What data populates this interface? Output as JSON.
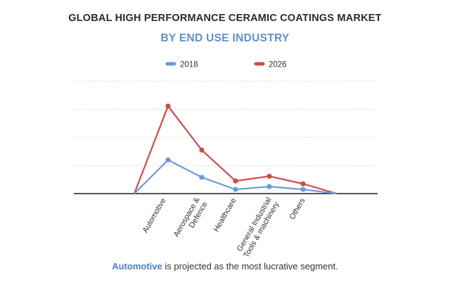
{
  "chart_data": {
    "type": "line",
    "title": "GLOBAL HIGH PERFORMANCE CERAMIC COATINGS MARKET",
    "subtitle": "BY END USE INDUSTRY",
    "categories": [
      "",
      "Automotive",
      "Aerospace & Defence",
      "Healthcare",
      "General Industrial Tools & machinery",
      "Others",
      ""
    ],
    "series": [
      {
        "name": "2018",
        "color": "#6a9bd8",
        "values": [
          0,
          1.2,
          0.58,
          0.15,
          0.25,
          0.15,
          0
        ]
      },
      {
        "name": "2026",
        "color": "#cf4a4a",
        "values": [
          0,
          3.12,
          1.55,
          0.45,
          0.62,
          0.35,
          0
        ]
      }
    ],
    "ylim": [
      0,
      4
    ],
    "gridlines": true,
    "xlabel": "",
    "ylabel": "",
    "legend": "top-center"
  },
  "footer": {
    "highlight": "Automotive",
    "text": " is projected as the most lucrative segment."
  }
}
